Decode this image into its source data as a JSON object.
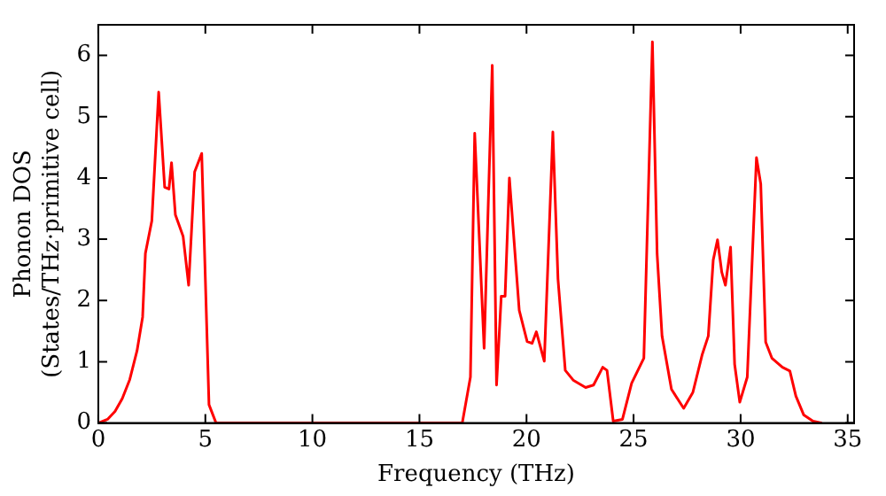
{
  "chart_data": {
    "type": "line",
    "xlabel": "Frequency (THz)",
    "ylabel": "Phonon DOS\n(States/THz·primitive cell)",
    "xlim": [
      0,
      35.3
    ],
    "ylim": [
      0,
      6.5
    ],
    "xticks": [
      0,
      5,
      10,
      15,
      20,
      25,
      30,
      35
    ],
    "yticks": [
      0,
      1,
      2,
      3,
      4,
      5,
      6
    ],
    "grid": false,
    "legend": false,
    "marker": "none",
    "line_style": "solid",
    "series": [
      {
        "color": "#ff0000",
        "x": [
          0,
          0.43,
          0.78,
          1.12,
          1.47,
          1.81,
          2.07,
          2.2,
          2.5,
          2.82,
          3.1,
          3.3,
          3.42,
          3.6,
          3.96,
          4.22,
          4.5,
          4.83,
          5.17,
          5.5,
          17.0,
          17.38,
          17.58,
          18.02,
          18.4,
          18.6,
          18.82,
          19.0,
          19.2,
          19.66,
          20.03,
          20.26,
          20.46,
          20.83,
          21.23,
          21.47,
          21.81,
          22.18,
          22.76,
          23.13,
          23.56,
          23.76,
          24.05,
          24.48,
          24.91,
          25.48,
          25.88,
          26.1,
          26.33,
          26.77,
          27.34,
          27.77,
          28.2,
          28.49,
          28.72,
          28.92,
          29.12,
          29.29,
          29.53,
          29.72,
          29.96,
          30.31,
          30.74,
          30.94,
          31.17,
          31.46,
          31.95,
          32.3,
          32.58,
          32.95,
          33.38,
          33.8
        ],
        "values": [
          0,
          0.06,
          0.19,
          0.4,
          0.71,
          1.18,
          1.73,
          2.77,
          3.3,
          5.4,
          3.85,
          3.82,
          4.25,
          3.4,
          3.05,
          2.25,
          4.1,
          4.4,
          0.3,
          0,
          0,
          0.75,
          4.73,
          1.22,
          5.84,
          0.62,
          2.07,
          2.07,
          4.0,
          1.84,
          1.33,
          1.3,
          1.49,
          1.01,
          4.75,
          2.35,
          0.86,
          0.7,
          0.58,
          0.62,
          0.91,
          0.86,
          0.03,
          0.06,
          0.65,
          1.06,
          6.22,
          2.76,
          1.42,
          0.55,
          0.24,
          0.5,
          1.11,
          1.42,
          2.66,
          2.99,
          2.46,
          2.25,
          2.87,
          0.96,
          0.34,
          0.75,
          4.33,
          3.9,
          1.32,
          1.06,
          0.91,
          0.85,
          0.44,
          0.13,
          0.03,
          0
        ]
      }
    ]
  }
}
